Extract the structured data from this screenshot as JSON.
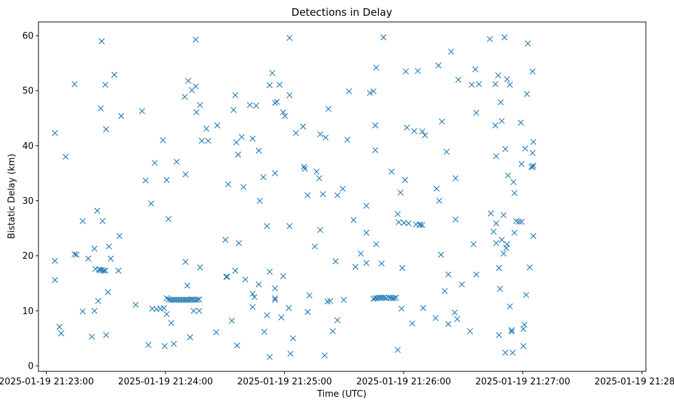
{
  "chart_data": {
    "type": "scatter",
    "title": "Detections in Delay",
    "xlabel": "Time (UTC)",
    "ylabel": "Bistatic Delay (km)",
    "x_unit": "seconds after 2025-01-19 21:23:00 UTC",
    "xlim": [
      -4,
      302
    ],
    "ylim": [
      -1,
      62.5
    ],
    "x_ticks": [
      {
        "value": 0,
        "label": "2025-01-19 21:23:00"
      },
      {
        "value": 60,
        "label": "2025-01-19 21:24:00"
      },
      {
        "value": 120,
        "label": "2025-01-19 21:25:00"
      },
      {
        "value": 180,
        "label": "2025-01-19 21:26:00"
      },
      {
        "value": 240,
        "label": "2025-01-19 21:27:00"
      },
      {
        "value": 300,
        "label": "2025-01-19 21:28:00"
      }
    ],
    "y_ticks": [
      {
        "value": 0,
        "label": "0"
      },
      {
        "value": 10,
        "label": "10"
      },
      {
        "value": 20,
        "label": "20"
      },
      {
        "value": 30,
        "label": "30"
      },
      {
        "value": 40,
        "label": "40"
      },
      {
        "value": 50,
        "label": "50"
      },
      {
        "value": 60,
        "label": "60"
      }
    ],
    "grid": false,
    "marker": "x",
    "color": "#1f77b4",
    "points": [
      [
        4.3,
        42.3
      ],
      [
        4.3,
        19.1
      ],
      [
        4.3,
        15.6
      ],
      [
        6.6,
        7.1
      ],
      [
        7.5,
        5.9
      ],
      [
        9.7,
        38
      ],
      [
        14.2,
        51.2
      ],
      [
        14.2,
        20.3
      ],
      [
        15.1,
        20.2
      ],
      [
        18.3,
        9.9
      ],
      [
        18.3,
        26.3
      ],
      [
        21.1,
        19.5
      ],
      [
        22.9,
        5.3
      ],
      [
        24.2,
        21.3
      ],
      [
        24.2,
        10
      ],
      [
        24.7,
        17.6
      ],
      [
        25.6,
        28.2
      ],
      [
        26.1,
        11.8
      ],
      [
        27.4,
        46.8
      ],
      [
        27.9,
        59
      ],
      [
        28.3,
        26.3
      ],
      [
        29.7,
        51.1
      ],
      [
        30.1,
        43
      ],
      [
        30.1,
        5.6
      ],
      [
        31,
        13.4
      ],
      [
        31.5,
        21.7
      ],
      [
        32.4,
        19.5
      ],
      [
        26.5,
        17.5
      ],
      [
        27,
        17.4
      ],
      [
        27.9,
        17.4
      ],
      [
        28.8,
        17.3
      ],
      [
        29.7,
        17.3
      ],
      [
        36.3,
        17.3
      ],
      [
        36.8,
        23.6
      ],
      [
        34.2,
        52.9
      ],
      [
        37.7,
        45.4
      ],
      [
        45,
        11.1
      ],
      [
        48.2,
        46.3
      ],
      [
        50,
        33.7
      ],
      [
        51.4,
        3.8
      ],
      [
        52.8,
        29.5
      ],
      [
        53.3,
        10.4
      ],
      [
        54.6,
        36.9
      ],
      [
        55.5,
        10.3
      ],
      [
        57.4,
        10.4
      ],
      [
        59.2,
        10.5
      ],
      [
        58.7,
        41
      ],
      [
        59.6,
        3.6
      ],
      [
        60.6,
        33.8
      ],
      [
        61.5,
        26.7
      ],
      [
        60.6,
        12.3
      ],
      [
        61.5,
        12.1
      ],
      [
        62.4,
        12
      ],
      [
        63.3,
        12
      ],
      [
        64.2,
        12
      ],
      [
        65.1,
        12
      ],
      [
        66,
        12
      ],
      [
        67,
        12
      ],
      [
        67.9,
        12
      ],
      [
        68.8,
        12
      ],
      [
        69.7,
        12
      ],
      [
        70.6,
        12
      ],
      [
        71.5,
        12
      ],
      [
        72.4,
        12
      ],
      [
        73.3,
        12.1
      ],
      [
        74.2,
        12
      ],
      [
        75.2,
        12
      ],
      [
        76.1,
        12
      ],
      [
        77,
        12.1
      ],
      [
        60.6,
        9.4
      ],
      [
        62.9,
        7.8
      ],
      [
        64.2,
        4
      ],
      [
        65.6,
        37.1
      ],
      [
        69.7,
        48.9
      ],
      [
        70.1,
        34.8
      ],
      [
        70.1,
        18.9
      ],
      [
        71,
        14.6
      ],
      [
        71.5,
        51.8
      ],
      [
        72.4,
        5.2
      ],
      [
        73.3,
        50.1
      ],
      [
        74.2,
        10
      ],
      [
        75.2,
        59.3
      ],
      [
        75.6,
        46.1
      ],
      [
        75.2,
        50.8
      ],
      [
        77,
        10
      ],
      [
        77.4,
        47.4
      ],
      [
        77.4,
        17.9
      ],
      [
        78.3,
        40.9
      ],
      [
        80.6,
        43.1
      ],
      [
        81.5,
        40.9
      ],
      [
        85.6,
        6.1
      ],
      [
        86.1,
        43.7
      ],
      [
        90.2,
        22.9
      ],
      [
        90.6,
        16.2
      ],
      [
        91.1,
        16.2
      ],
      [
        91.6,
        33
      ],
      [
        93.4,
        8.2
      ],
      [
        94.3,
        46.5
      ],
      [
        95.2,
        17.3
      ],
      [
        95.2,
        49.2
      ],
      [
        95.7,
        40.6
      ],
      [
        96.6,
        38.4
      ],
      [
        97,
        22.3
      ],
      [
        96.1,
        3.7
      ],
      [
        98.4,
        41.6
      ],
      [
        99.3,
        32.5
      ],
      [
        100.2,
        15.7
      ],
      [
        102.5,
        47.4
      ],
      [
        103.9,
        13.1
      ],
      [
        103.9,
        10.7
      ],
      [
        103.9,
        41.3
      ],
      [
        104.8,
        12.5
      ],
      [
        105.7,
        47.3
      ],
      [
        107,
        14.8
      ],
      [
        107,
        39.1
      ],
      [
        107.5,
        30
      ],
      [
        109.3,
        34.3
      ],
      [
        109.8,
        6.2
      ],
      [
        111.1,
        25.4
      ],
      [
        111.1,
        9.2
      ],
      [
        112.5,
        51
      ],
      [
        112.5,
        17.1
      ],
      [
        112.5,
        1.6
      ],
      [
        113.8,
        53.2
      ],
      [
        115.2,
        12
      ],
      [
        115.2,
        47.8
      ],
      [
        115.2,
        12.3
      ],
      [
        115.2,
        14.1
      ],
      [
        115.2,
        35
      ],
      [
        116.1,
        48
      ],
      [
        117.5,
        51.1
      ],
      [
        118.4,
        8.8
      ],
      [
        119.3,
        16.3
      ],
      [
        119.3,
        46.1
      ],
      [
        120.2,
        45.4
      ],
      [
        122.1,
        10.5
      ],
      [
        122.5,
        49.2
      ],
      [
        122.5,
        25.4
      ],
      [
        122.5,
        59.6
      ],
      [
        123,
        2.2
      ],
      [
        124.3,
        5
      ],
      [
        125.7,
        42.3
      ],
      [
        129.3,
        43.5
      ],
      [
        129.8,
        36.2
      ],
      [
        130.2,
        35.8
      ],
      [
        131.6,
        9.8
      ],
      [
        131.6,
        31
      ],
      [
        132.5,
        12.8
      ],
      [
        135.2,
        21.7
      ],
      [
        136.1,
        35.3
      ],
      [
        137.5,
        34.1
      ],
      [
        138,
        24.7
      ],
      [
        138,
        42.1
      ],
      [
        139.3,
        31.2
      ],
      [
        140.2,
        1.9
      ],
      [
        140.7,
        41.5
      ],
      [
        141.6,
        11.7
      ],
      [
        142.1,
        46.7
      ],
      [
        143,
        11.8
      ],
      [
        144.3,
        6.3
      ],
      [
        145.7,
        19
      ],
      [
        146.6,
        8.3
      ],
      [
        146.6,
        31
      ],
      [
        149.3,
        32.2
      ],
      [
        149.8,
        12
      ],
      [
        151.6,
        41.1
      ],
      [
        152.5,
        49.9
      ],
      [
        154.8,
        26.5
      ],
      [
        155.7,
        18
      ],
      [
        158.4,
        20.4
      ],
      [
        161.2,
        29.1
      ],
      [
        161.2,
        18.7
      ],
      [
        161.2,
        24.2
      ],
      [
        163,
        49.6
      ],
      [
        164.8,
        49.9
      ],
      [
        165.7,
        43.7
      ],
      [
        165.7,
        39.2
      ],
      [
        166.2,
        54.2
      ],
      [
        166.2,
        22.1
      ],
      [
        164.8,
        12.2
      ],
      [
        165.7,
        12.3
      ],
      [
        166.6,
        12.3
      ],
      [
        167.5,
        12.4
      ],
      [
        168.4,
        12.4
      ],
      [
        169.3,
        12.4
      ],
      [
        170.2,
        12.4
      ],
      [
        171.1,
        12.3
      ],
      [
        172.5,
        12.4
      ],
      [
        173.4,
        12.4
      ],
      [
        174.3,
        12.3
      ],
      [
        175.2,
        12.3
      ],
      [
        176.1,
        12.4
      ],
      [
        168.9,
        18.6
      ],
      [
        169.8,
        59.7
      ],
      [
        173.9,
        35.3
      ],
      [
        177,
        27.6
      ],
      [
        177,
        2.9
      ],
      [
        177.5,
        26.1
      ],
      [
        178.4,
        31.5
      ],
      [
        178.9,
        10.4
      ],
      [
        179.3,
        17.8
      ],
      [
        180.2,
        26
      ],
      [
        180.7,
        33.8
      ],
      [
        181.1,
        53.5
      ],
      [
        181.6,
        43.3
      ],
      [
        182.5,
        25.9
      ],
      [
        184.3,
        7.7
      ],
      [
        185.3,
        42.7
      ],
      [
        186.2,
        25.7
      ],
      [
        187.1,
        53.6
      ],
      [
        188,
        25.6
      ],
      [
        188.4,
        25.7
      ],
      [
        189.4,
        25.6
      ],
      [
        189.4,
        42.6
      ],
      [
        189.8,
        10.5
      ],
      [
        190.7,
        41.9
      ],
      [
        196.1,
        8.7
      ],
      [
        196.6,
        32.2
      ],
      [
        197.5,
        54.6
      ],
      [
        197.9,
        30
      ],
      [
        198.8,
        20.2
      ],
      [
        199.3,
        44.4
      ],
      [
        200.7,
        13.6
      ],
      [
        201.6,
        38.9
      ],
      [
        202.5,
        16.6
      ],
      [
        202.5,
        7.6
      ],
      [
        203.9,
        57.1
      ],
      [
        205.7,
        9.7
      ],
      [
        206.1,
        26.6
      ],
      [
        206.1,
        34.1
      ],
      [
        207,
        8.5
      ],
      [
        207.5,
        52
      ],
      [
        209.3,
        14.8
      ],
      [
        213.4,
        6.3
      ],
      [
        214.3,
        51.1
      ],
      [
        215.2,
        22.1
      ],
      [
        216.1,
        53.9
      ],
      [
        216.6,
        46
      ],
      [
        216.6,
        16.6
      ],
      [
        217.9,
        51.2
      ],
      [
        223.4,
        59.4
      ],
      [
        223.9,
        27.7
      ],
      [
        225.3,
        24.4
      ],
      [
        226.2,
        51.2
      ],
      [
        226.2,
        43.7
      ],
      [
        226.6,
        25.9
      ],
      [
        226.6,
        22.3
      ],
      [
        226.6,
        38.1
      ],
      [
        227.6,
        52.8
      ],
      [
        228,
        17.8
      ],
      [
        228,
        5.6
      ],
      [
        228.5,
        14
      ],
      [
        228.9,
        47.9
      ],
      [
        229.4,
        44.5
      ],
      [
        229.4,
        22.9
      ],
      [
        230.3,
        27.4
      ],
      [
        230.3,
        20.4
      ],
      [
        230.8,
        59.7
      ],
      [
        231.2,
        39.4
      ],
      [
        231.2,
        2.4
      ],
      [
        231.7,
        21.4
      ],
      [
        232.1,
        22.1
      ],
      [
        232.1,
        52.1
      ],
      [
        232.6,
        34.6
      ],
      [
        233.5,
        10.8
      ],
      [
        233.5,
        51.1
      ],
      [
        234.4,
        6.5
      ],
      [
        234.4,
        6.2
      ],
      [
        234.9,
        2.4
      ],
      [
        235.3,
        33.4
      ],
      [
        235.8,
        24.2
      ],
      [
        235.8,
        31.4
      ],
      [
        236.7,
        26.3
      ],
      [
        238.1,
        26.2
      ],
      [
        239,
        44.2
      ],
      [
        239.4,
        36.7
      ],
      [
        239.4,
        26.2
      ],
      [
        240.3,
        3.6
      ],
      [
        240.3,
        6.7
      ],
      [
        240.8,
        7.5
      ],
      [
        241.2,
        39.5
      ],
      [
        241.7,
        12.9
      ],
      [
        242.1,
        49.4
      ],
      [
        242.6,
        58.6
      ],
      [
        243.5,
        17.9
      ],
      [
        244.4,
        36.2
      ],
      [
        245.3,
        36.4
      ],
      [
        244.9,
        36.1
      ],
      [
        245.3,
        40.7
      ],
      [
        244.9,
        38.7
      ],
      [
        245.3,
        23.6
      ],
      [
        244.9,
        53.5
      ]
    ]
  }
}
